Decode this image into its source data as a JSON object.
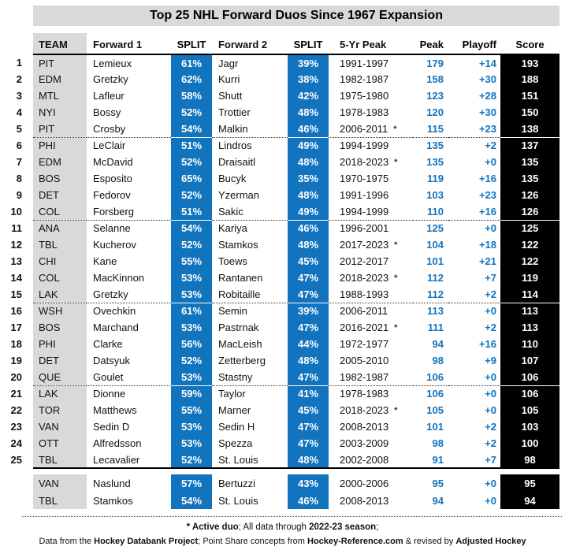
{
  "colors": {
    "accent_blue": "#1273be",
    "bar_gray": "#d9d9d9",
    "score_black": "#000000"
  },
  "chart_data": {
    "type": "table",
    "title": "Top 25 NHL Forward Duos Since 1967 Expansion",
    "columns": [
      "TEAM",
      "Forward 1",
      "SPLIT",
      "Forward 2",
      "SPLIT",
      "5-Yr Peak",
      "Peak",
      "Playoff",
      "Score"
    ],
    "rows": [
      {
        "rank": "1",
        "team": "PIT",
        "forward1": "Lemieux",
        "split1": "61%",
        "forward2": "Jagr",
        "split2": "39%",
        "peak5": "1991-1997",
        "active": false,
        "peak": "179",
        "playoff": "+14",
        "score": "193"
      },
      {
        "rank": "2",
        "team": "EDM",
        "forward1": "Gretzky",
        "split1": "62%",
        "forward2": "Kurri",
        "split2": "38%",
        "peak5": "1982-1987",
        "active": false,
        "peak": "158",
        "playoff": "+30",
        "score": "188"
      },
      {
        "rank": "3",
        "team": "MTL",
        "forward1": "Lafleur",
        "split1": "58%",
        "forward2": "Shutt",
        "split2": "42%",
        "peak5": "1975-1980",
        "active": false,
        "peak": "123",
        "playoff": "+28",
        "score": "151"
      },
      {
        "rank": "4",
        "team": "NYI",
        "forward1": "Bossy",
        "split1": "52%",
        "forward2": "Trottier",
        "split2": "48%",
        "peak5": "1978-1983",
        "active": false,
        "peak": "120",
        "playoff": "+30",
        "score": "150"
      },
      {
        "rank": "5",
        "team": "PIT",
        "forward1": "Crosby",
        "split1": "54%",
        "forward2": "Malkin",
        "split2": "46%",
        "peak5": "2006-2011",
        "active": true,
        "peak": "115",
        "playoff": "+23",
        "score": "138"
      },
      {
        "rank": "6",
        "team": "PHI",
        "forward1": "LeClair",
        "split1": "51%",
        "forward2": "Lindros",
        "split2": "49%",
        "peak5": "1994-1999",
        "active": false,
        "peak": "135",
        "playoff": "+2",
        "score": "137"
      },
      {
        "rank": "7",
        "team": "EDM",
        "forward1": "McDavid",
        "split1": "52%",
        "forward2": "Draisaitl",
        "split2": "48%",
        "peak5": "2018-2023",
        "active": true,
        "peak": "135",
        "playoff": "+0",
        "score": "135"
      },
      {
        "rank": "8",
        "team": "BOS",
        "forward1": "Esposito",
        "split1": "65%",
        "forward2": "Bucyk",
        "split2": "35%",
        "peak5": "1970-1975",
        "active": false,
        "peak": "119",
        "playoff": "+16",
        "score": "135"
      },
      {
        "rank": "9",
        "team": "DET",
        "forward1": "Fedorov",
        "split1": "52%",
        "forward2": "Yzerman",
        "split2": "48%",
        "peak5": "1991-1996",
        "active": false,
        "peak": "103",
        "playoff": "+23",
        "score": "126"
      },
      {
        "rank": "10",
        "team": "COL",
        "forward1": "Forsberg",
        "split1": "51%",
        "forward2": "Sakic",
        "split2": "49%",
        "peak5": "1994-1999",
        "active": false,
        "peak": "110",
        "playoff": "+16",
        "score": "126"
      },
      {
        "rank": "11",
        "team": "ANA",
        "forward1": "Selanne",
        "split1": "54%",
        "forward2": "Kariya",
        "split2": "46%",
        "peak5": "1996-2001",
        "active": false,
        "peak": "125",
        "playoff": "+0",
        "score": "125"
      },
      {
        "rank": "12",
        "team": "TBL",
        "forward1": "Kucherov",
        "split1": "52%",
        "forward2": "Stamkos",
        "split2": "48%",
        "peak5": "2017-2023",
        "active": true,
        "peak": "104",
        "playoff": "+18",
        "score": "122"
      },
      {
        "rank": "13",
        "team": "CHI",
        "forward1": "Kane",
        "split1": "55%",
        "forward2": "Toews",
        "split2": "45%",
        "peak5": "2012-2017",
        "active": false,
        "peak": "101",
        "playoff": "+21",
        "score": "122"
      },
      {
        "rank": "14",
        "team": "COL",
        "forward1": "MacKinnon",
        "split1": "53%",
        "forward2": "Rantanen",
        "split2": "47%",
        "peak5": "2018-2023",
        "active": true,
        "peak": "112",
        "playoff": "+7",
        "score": "119"
      },
      {
        "rank": "15",
        "team": "LAK",
        "forward1": "Gretzky",
        "split1": "53%",
        "forward2": "Robitaille",
        "split2": "47%",
        "peak5": "1988-1993",
        "active": false,
        "peak": "112",
        "playoff": "+2",
        "score": "114"
      },
      {
        "rank": "16",
        "team": "WSH",
        "forward1": "Ovechkin",
        "split1": "61%",
        "forward2": "Semin",
        "split2": "39%",
        "peak5": "2006-2011",
        "active": false,
        "peak": "113",
        "playoff": "+0",
        "score": "113"
      },
      {
        "rank": "17",
        "team": "BOS",
        "forward1": "Marchand",
        "split1": "53%",
        "forward2": "Pastrnak",
        "split2": "47%",
        "peak5": "2016-2021",
        "active": true,
        "peak": "111",
        "playoff": "+2",
        "score": "113"
      },
      {
        "rank": "18",
        "team": "PHI",
        "forward1": "Clarke",
        "split1": "56%",
        "forward2": "MacLeish",
        "split2": "44%",
        "peak5": "1972-1977",
        "active": false,
        "peak": "94",
        "playoff": "+16",
        "score": "110"
      },
      {
        "rank": "19",
        "team": "DET",
        "forward1": "Datsyuk",
        "split1": "52%",
        "forward2": "Zetterberg",
        "split2": "48%",
        "peak5": "2005-2010",
        "active": false,
        "peak": "98",
        "playoff": "+9",
        "score": "107"
      },
      {
        "rank": "20",
        "team": "QUE",
        "forward1": "Goulet",
        "split1": "53%",
        "forward2": "Stastny",
        "split2": "47%",
        "peak5": "1982-1987",
        "active": false,
        "peak": "106",
        "playoff": "+0",
        "score": "106"
      },
      {
        "rank": "21",
        "team": "LAK",
        "forward1": "Dionne",
        "split1": "59%",
        "forward2": "Taylor",
        "split2": "41%",
        "peak5": "1978-1983",
        "active": false,
        "peak": "106",
        "playoff": "+0",
        "score": "106"
      },
      {
        "rank": "22",
        "team": "TOR",
        "forward1": "Matthews",
        "split1": "55%",
        "forward2": "Marner",
        "split2": "45%",
        "peak5": "2018-2023",
        "active": true,
        "peak": "105",
        "playoff": "+0",
        "score": "105"
      },
      {
        "rank": "23",
        "team": "VAN",
        "forward1": "Sedin D",
        "split1": "53%",
        "forward2": "Sedin H",
        "split2": "47%",
        "peak5": "2008-2013",
        "active": false,
        "peak": "101",
        "playoff": "+2",
        "score": "103"
      },
      {
        "rank": "24",
        "team": "OTT",
        "forward1": "Alfredsson",
        "split1": "53%",
        "forward2": "Spezza",
        "split2": "47%",
        "peak5": "2003-2009",
        "active": false,
        "peak": "98",
        "playoff": "+2",
        "score": "100"
      },
      {
        "rank": "25",
        "team": "TBL",
        "forward1": "Lecavalier",
        "split1": "52%",
        "forward2": "St. Louis",
        "split2": "48%",
        "peak5": "2002-2008",
        "active": false,
        "peak": "91",
        "playoff": "+7",
        "score": "98"
      }
    ],
    "bonus_rows": [
      {
        "rank": "",
        "team": "VAN",
        "forward1": "Naslund",
        "split1": "57%",
        "forward2": "Bertuzzi",
        "split2": "43%",
        "peak5": "2000-2006",
        "active": false,
        "peak": "95",
        "playoff": "+0",
        "score": "95"
      },
      {
        "rank": "",
        "team": "TBL",
        "forward1": "Stamkos",
        "split1": "54%",
        "forward2": "St. Louis",
        "split2": "46%",
        "peak5": "2008-2013",
        "active": false,
        "peak": "94",
        "playoff": "+0",
        "score": "94"
      }
    ]
  },
  "footnotes": {
    "line1": [
      {
        "text": "* Active duo",
        "bold": true
      },
      {
        "text": ";  All data through ",
        "bold": false
      },
      {
        "text": "2022-23 season",
        "bold": true
      },
      {
        "text": ";",
        "bold": false
      }
    ],
    "line2": [
      {
        "text": "Data from the ",
        "bold": false
      },
      {
        "text": "Hockey Databank Project",
        "bold": true
      },
      {
        "text": "; Point Share concepts from ",
        "bold": false
      },
      {
        "text": "Hockey-Reference.com",
        "bold": true
      },
      {
        "text": " & revised by ",
        "bold": false
      },
      {
        "text": "Adjusted Hockey",
        "bold": true
      }
    ]
  }
}
